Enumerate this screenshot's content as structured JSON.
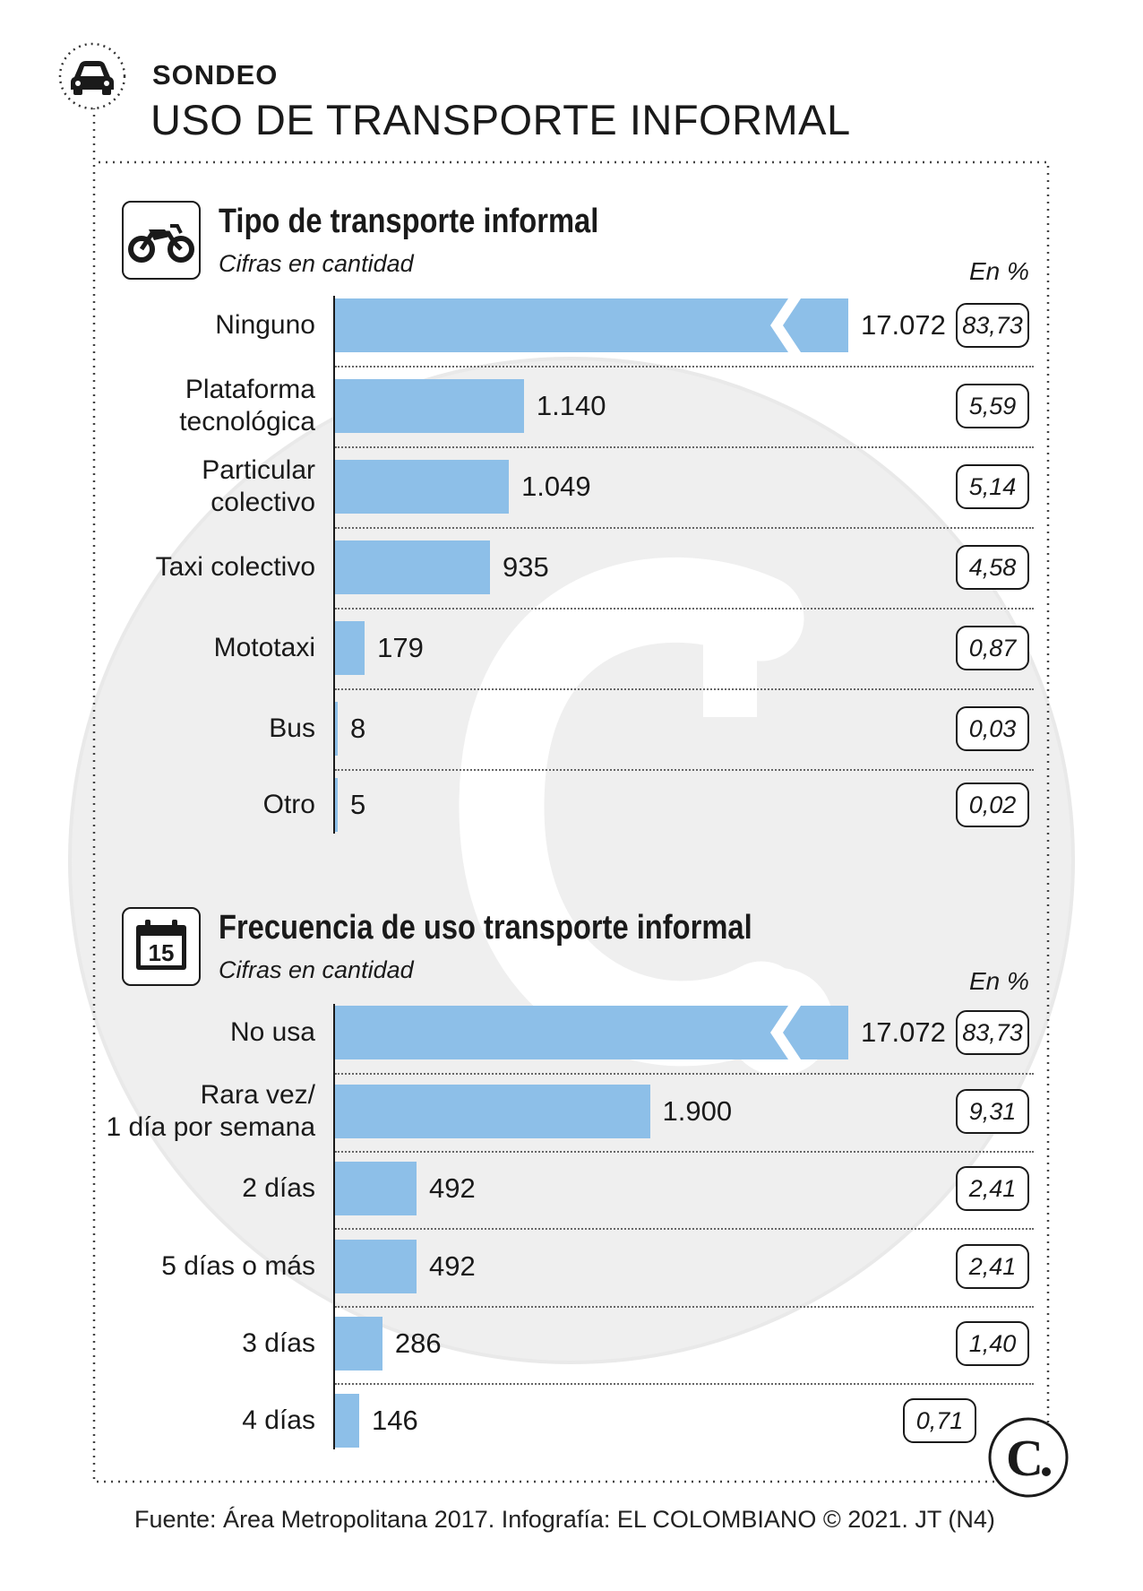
{
  "header": {
    "kicker": "SONDEO",
    "title": "USO DE TRANSPORTE INFORMAL"
  },
  "pct_header": "En %",
  "source": "Fuente: Área Metropolitana 2017. Infografía: EL COLOMBIANO © 2021. JT (N4)",
  "colors": {
    "bar": "#8dbfe8",
    "bar_dark": "#7fb3de",
    "watermark": "#ececec",
    "text": "#1a1a1a"
  },
  "icons": [
    "car-icon",
    "motorcycle-icon",
    "calendar-icon",
    "el-colombiano-logo"
  ],
  "chart_data": [
    {
      "type": "bar",
      "orientation": "horizontal",
      "title": "Tipo de transporte informal",
      "subtitle": "Cifras en cantidad",
      "categories": [
        "Ninguno",
        "Plataforma tecnológica",
        "Particular colectivo",
        "Taxi colectivo",
        "Mototaxi",
        "Bus",
        "Otro"
      ],
      "category_lines": [
        [
          "Ninguno"
        ],
        [
          "Plataforma",
          "tecnológica"
        ],
        [
          "Particular",
          "colectivo"
        ],
        [
          "Taxi colectivo"
        ],
        [
          "Mototaxi"
        ],
        [
          "Bus"
        ],
        [
          "Otro"
        ]
      ],
      "values": [
        17072,
        1140,
        1049,
        935,
        179,
        8,
        5
      ],
      "value_labels": [
        "17.072",
        "1.140",
        "1.049",
        "935",
        "179",
        "8",
        "5"
      ],
      "percent": [
        83.73,
        5.59,
        5.14,
        4.58,
        0.87,
        0.03,
        0.02
      ],
      "percent_labels": [
        "83,73",
        "5,59",
        "5,14",
        "4,58",
        "0,87",
        "0,03",
        "0,02"
      ],
      "axis_break_on_first_bar": true
    },
    {
      "type": "bar",
      "orientation": "horizontal",
      "title": "Frecuencia de uso transporte informal",
      "subtitle": "Cifras en cantidad",
      "categories": [
        "No usa",
        "Rara vez/ 1 día por semana",
        "2 días",
        "5 días o más",
        "3 días",
        "4 días"
      ],
      "category_lines": [
        [
          "No usa"
        ],
        [
          "Rara vez/",
          "1 día por semana"
        ],
        [
          "2 días"
        ],
        [
          "5 días o más"
        ],
        [
          "3 días"
        ],
        [
          "4 días"
        ]
      ],
      "values": [
        17072,
        1900,
        492,
        492,
        286,
        146
      ],
      "value_labels": [
        "17.072",
        "1.900",
        "492",
        "492",
        "286",
        "146"
      ],
      "percent": [
        83.73,
        9.31,
        2.41,
        2.41,
        1.4,
        0.71
      ],
      "percent_labels": [
        "83,73",
        "9,31",
        "2,41",
        "2,41",
        "1,40",
        "0,71"
      ],
      "axis_break_on_first_bar": true
    }
  ]
}
